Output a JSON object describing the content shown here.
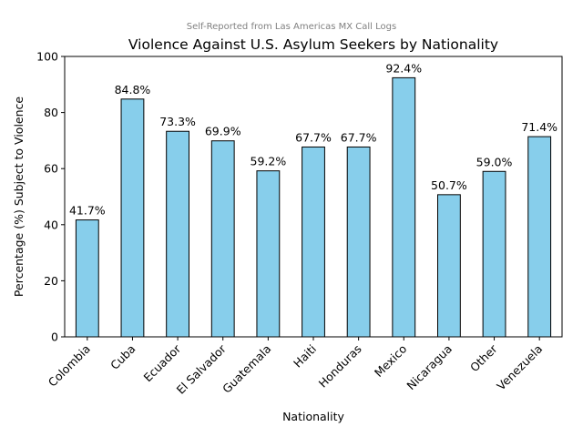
{
  "chart_data": {
    "type": "bar",
    "subtitle": "Self-Reported from Las Americas MX Call Logs",
    "title": "Violence Against U.S. Asylum Seekers by Nationality",
    "xlabel": "Nationality",
    "ylabel": "Percentage (%) Subject to Violence",
    "categories": [
      "Colombia",
      "Cuba",
      "Ecuador",
      "El Salvador",
      "Guatemala",
      "Haiti",
      "Honduras",
      "Mexico",
      "Nicaragua",
      "Other",
      "Venezuela"
    ],
    "values": [
      41.7,
      84.8,
      73.3,
      69.9,
      59.2,
      67.7,
      67.7,
      92.4,
      50.7,
      59.0,
      71.4
    ],
    "data_labels": [
      "41.7%",
      "84.8%",
      "73.3%",
      "69.9%",
      "59.2%",
      "67.7%",
      "67.7%",
      "92.4%",
      "50.7%",
      "59.0%",
      "71.4%"
    ],
    "ylim": [
      0,
      100
    ],
    "yticks": [
      0,
      20,
      40,
      60,
      80,
      100
    ],
    "grid": false,
    "bar_color": "#87ceeb",
    "bar_edge_color": "#000000"
  }
}
